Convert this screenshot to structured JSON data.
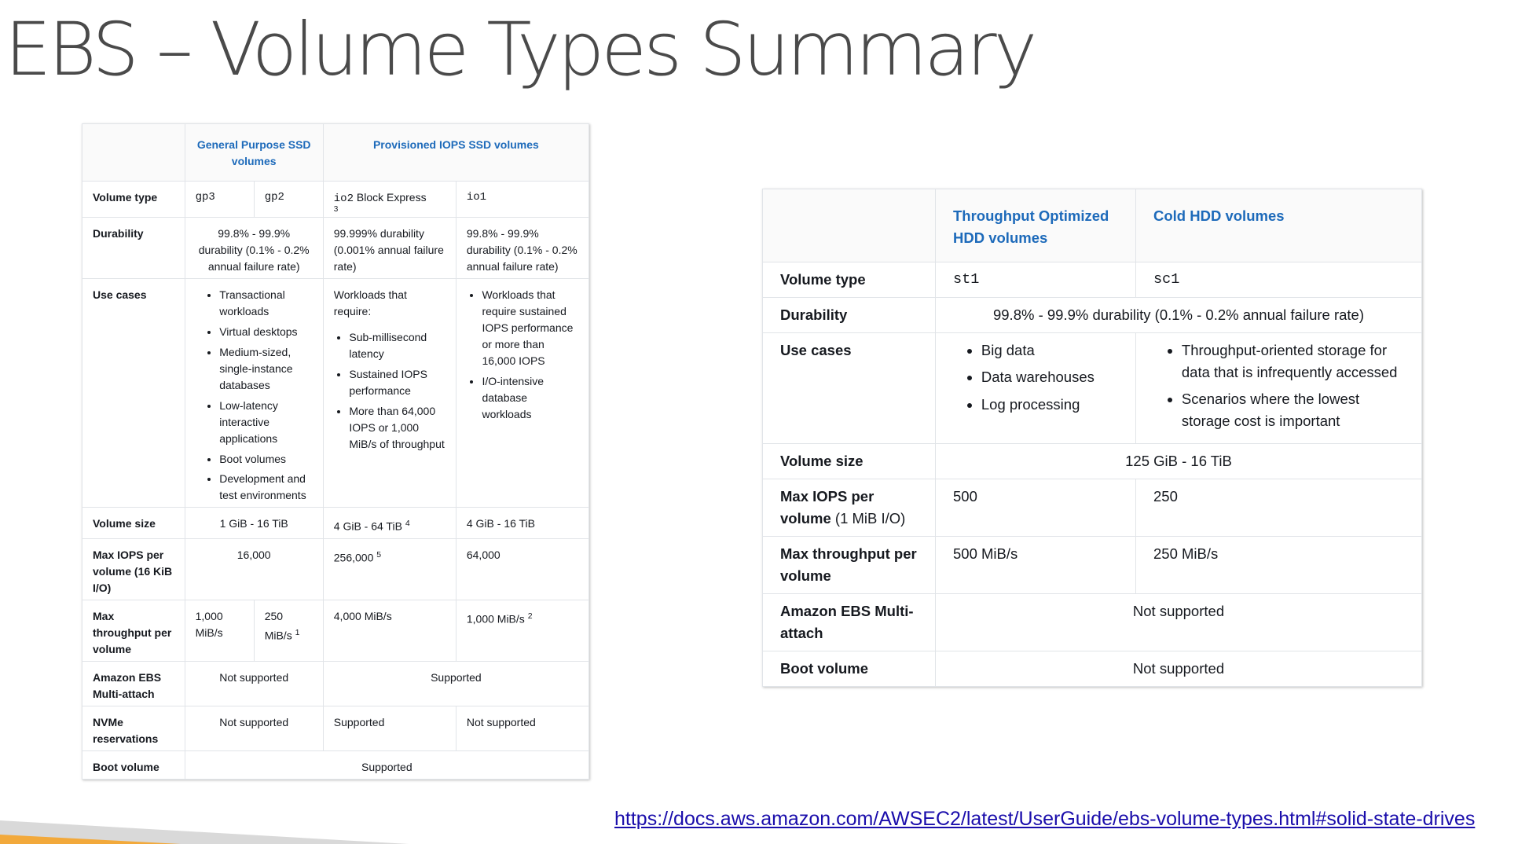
{
  "title": "EBS – Volume Types Summary",
  "ssd_table": {
    "groups": [
      "General Purpose SSD volumes",
      "Provisioned IOPS SSD volumes"
    ],
    "rows": {
      "volume_type": {
        "label": "Volume type",
        "gp3": "gp3",
        "gp2": "gp2",
        "io2": "io2",
        "io2_suffix": "Block Express",
        "io2_sup": "3",
        "io1": "io1"
      },
      "durability": {
        "label": "Durability",
        "gp": "99.8% - 99.9% durability (0.1% - 0.2% annual failure rate)",
        "io2": "99.999% durability (0.001% annual failure rate)",
        "io1": "99.8% - 99.9% durability (0.1% - 0.2% annual failure rate)"
      },
      "use_cases": {
        "label": "Use cases",
        "gp": [
          "Transactional workloads",
          "Virtual desktops",
          "Medium-sized, single-instance databases",
          "Low-latency interactive applications",
          "Boot volumes",
          "Development and test environments"
        ],
        "io2_intro": "Workloads that require:",
        "io2": [
          "Sub-millisecond latency",
          "Sustained IOPS performance",
          "More than 64,000 IOPS or 1,000 MiB/s of throughput"
        ],
        "io1": [
          "Workloads that require sustained IOPS performance or more than 16,000 IOPS",
          "I/O-intensive database workloads"
        ]
      },
      "volume_size": {
        "label": "Volume size",
        "gp": "1 GiB - 16 TiB",
        "io2": "4 GiB - 64 TiB",
        "io2_sup": "4",
        "io1": "4 GiB - 16 TiB"
      },
      "max_iops": {
        "label": "Max IOPS per volume (16 KiB I/O)",
        "gp": "16,000",
        "io2": "256,000",
        "io2_sup": "5",
        "io1": "64,000"
      },
      "max_throughput": {
        "label": "Max throughput per volume",
        "gp3": "1,000 MiB/s",
        "gp2": "250 MiB/s",
        "gp2_sup": "1",
        "io2": "4,000 MiB/s",
        "io1": "1,000 MiB/s",
        "io1_sup": "2"
      },
      "multi_attach": {
        "label": "Amazon EBS Multi-attach",
        "gp": "Not supported",
        "io": "Supported"
      },
      "nvme": {
        "label": "NVMe reservations",
        "gp": "Not supported",
        "io2": "Supported",
        "io1": "Not supported"
      },
      "boot": {
        "label": "Boot volume",
        "all": "Supported"
      }
    }
  },
  "hdd_table": {
    "groups": [
      "Throughput Optimized HDD volumes",
      "Cold HDD volumes"
    ],
    "rows": {
      "volume_type": {
        "label": "Volume type",
        "st1": "st1",
        "sc1": "sc1"
      },
      "durability": {
        "label": "Durability",
        "all": "99.8% - 99.9% durability (0.1% - 0.2% annual failure rate)"
      },
      "use_cases": {
        "label": "Use cases",
        "st1": [
          "Big data",
          "Data warehouses",
          "Log processing"
        ],
        "sc1": [
          "Throughput-oriented storage for data that is infrequently accessed",
          "Scenarios where the lowest storage cost is important"
        ]
      },
      "volume_size": {
        "label": "Volume size",
        "all": "125 GiB - 16 TiB"
      },
      "max_iops": {
        "label": "Max IOPS per volume",
        "label_suffix": "(1 MiB I/O)",
        "st1": "500",
        "sc1": "250"
      },
      "max_throughput": {
        "label": "Max throughput per volume",
        "st1": "500 MiB/s",
        "sc1": "250 MiB/s"
      },
      "multi_attach": {
        "label": "Amazon EBS Multi-attach",
        "all": "Not supported"
      },
      "boot": {
        "label": "Boot volume",
        "all": "Not supported"
      }
    }
  },
  "link": "https://docs.aws.amazon.com/AWSEC2/latest/UserGuide/ebs-volume-types.html#solid-state-drives",
  "colors": {
    "title": "#4a4a4a",
    "header_text": "#1d6aba",
    "link": "#1a0dab",
    "stripe_gray": "#d9d9d9",
    "stripe_orange": "#f2a93b"
  }
}
